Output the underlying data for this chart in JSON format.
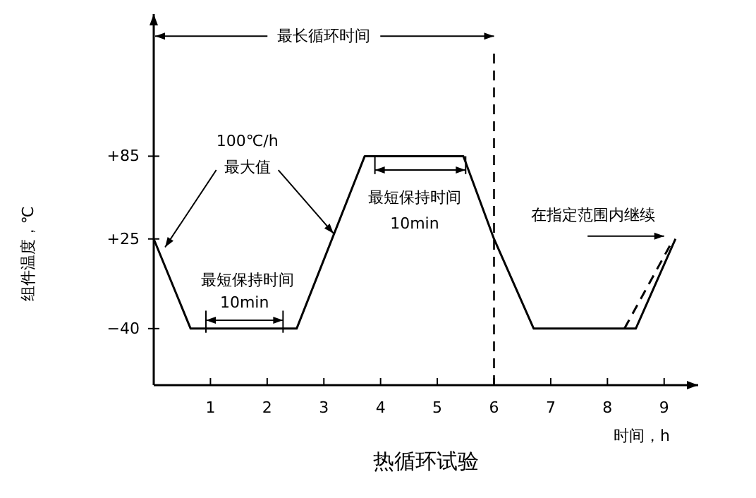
{
  "chart_data": {
    "type": "line",
    "title": "热循环试验",
    "xlabel": "时间，h",
    "ylabel": "组件温度，℃",
    "x": [
      0,
      0.65,
      2.52,
      3.72,
      5.46,
      6,
      6.7,
      8.5,
      9.2
    ],
    "series": [
      {
        "color": "#000000",
        "values": [
          25,
          -40,
          -40,
          85,
          85,
          25,
          -40,
          -40,
          25
        ],
        "line_style": "solid"
      },
      {
        "color": "#000000",
        "x": [
          8.3,
          9.1
        ],
        "values": [
          -40,
          20
        ],
        "line_style": "dashed"
      }
    ],
    "xlim": [
      0,
      9.6
    ],
    "ylim": [
      -81,
      188
    ],
    "xticks": [
      1,
      2,
      3,
      4,
      5,
      6,
      7,
      8,
      9
    ],
    "yticks": [
      {
        "value": 85,
        "label": "+85"
      },
      {
        "value": 25,
        "label": "+25"
      },
      {
        "value": -40,
        "label": "−40"
      }
    ],
    "ref_lines": [
      {
        "axis": "x",
        "value": 6,
        "line_style": "dashed"
      }
    ],
    "grid": false,
    "annotations": [
      "最长循环时间",
      {
        "text": "100℃/h",
        "x": 3.17,
        "y": 29
      },
      {
        "text": "最大值",
        "x": 0.2,
        "y": 19
      },
      "最短保持时间",
      "10min",
      "最短保持时间",
      "10min",
      "在指定范围内继续"
    ]
  }
}
